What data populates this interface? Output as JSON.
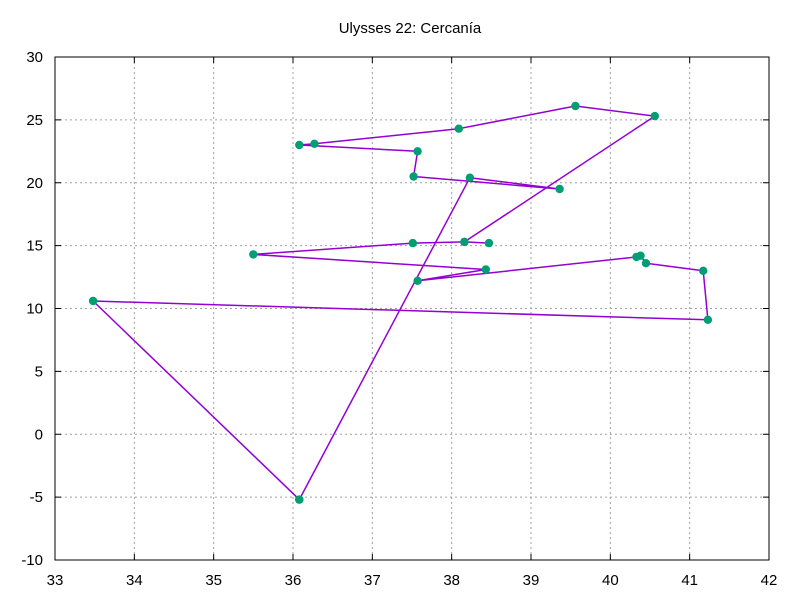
{
  "chart_data": {
    "type": "line",
    "title": "Ulysses 22: Cercanía",
    "xlabel": "",
    "ylabel": "",
    "xlim": [
      33,
      42
    ],
    "ylim": [
      -10,
      30
    ],
    "x_ticks": [
      33,
      34,
      35,
      36,
      37,
      38,
      39,
      40,
      41,
      42
    ],
    "y_ticks": [
      -10,
      -5,
      0,
      5,
      10,
      15,
      20,
      25,
      30
    ],
    "grid": true,
    "legend": "none",
    "line_color": "#9400d3",
    "point_color": "#009e73",
    "series": [
      {
        "x": [
          36.08,
          33.48,
          41.23,
          41.17,
          40.45,
          40.38,
          40.33,
          37.57,
          38.43,
          35.5,
          37.51,
          38.16,
          38.47,
          38.16,
          40.56,
          39.56,
          38.09,
          36.27,
          36.08,
          37.57,
          37.52,
          39.36,
          38.23,
          36.08
        ],
        "y": [
          -5.2,
          10.6,
          9.1,
          13.0,
          13.6,
          14.2,
          14.1,
          12.2,
          13.1,
          14.3,
          15.2,
          15.3,
          15.2,
          15.3,
          25.3,
          26.1,
          24.3,
          23.1,
          23.0,
          22.5,
          20.5,
          19.5,
          20.4,
          -5.2
        ]
      }
    ]
  }
}
